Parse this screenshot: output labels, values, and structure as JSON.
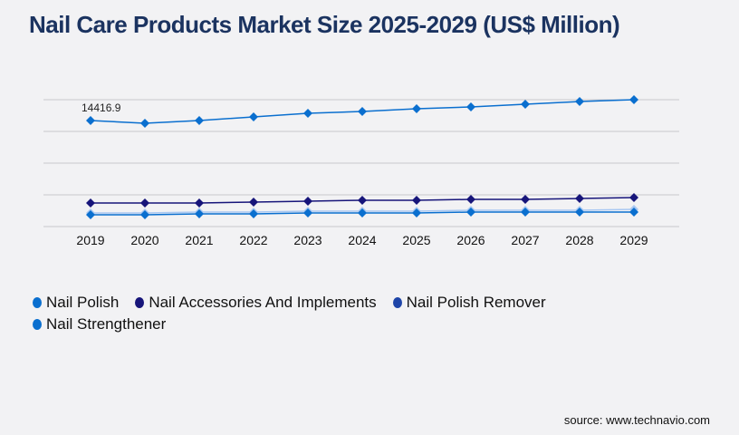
{
  "chart_data": {
    "type": "line",
    "title": "Nail Care Products Market Size 2025-2029 (US$ Million)",
    "xlabel": "",
    "ylabel": "",
    "x": [
      "2019",
      "2020",
      "2021",
      "2022",
      "2023",
      "2024",
      "2025",
      "2026",
      "2027",
      "2028",
      "2029"
    ],
    "ylim": [
      0,
      17250
    ],
    "grid": true,
    "legend_position": "bottom-left",
    "annotations": [
      {
        "series": "Nail Polish",
        "x": "2019",
        "text": "14416.9"
      }
    ],
    "series": [
      {
        "name": "Nail Polish",
        "color": "#0a6fcf",
        "values": [
          14416.9,
          14047,
          14417,
          14910,
          15402,
          15649,
          16018,
          16265,
          16635,
          17004,
          17251
        ]
      },
      {
        "name": "Nail Accessories And Implements",
        "color": "#17157a",
        "values": [
          3204,
          3204,
          3204,
          3327,
          3450,
          3574,
          3574,
          3697,
          3697,
          3820,
          3943
        ]
      },
      {
        "name": "Nail Polish Remover",
        "color": "#a9c8f2",
        "legend_color": "#1e45a8",
        "values": [
          1848,
          1848,
          1972,
          1972,
          2095,
          2095,
          2095,
          2218,
          2218,
          2218,
          2341
        ]
      },
      {
        "name": "Nail Strengthener",
        "color": "#0a6fcf",
        "values": [
          1602,
          1602,
          1725,
          1725,
          1848,
          1848,
          1848,
          1972,
          1972,
          1972,
          1972
        ]
      }
    ]
  },
  "source": "source: www.technavio.com"
}
